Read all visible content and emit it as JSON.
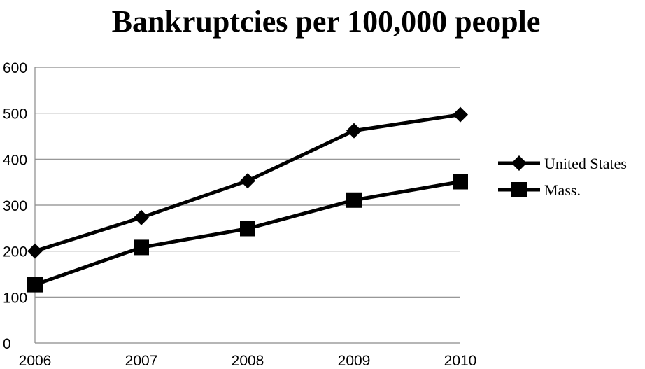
{
  "chart_data": {
    "type": "line",
    "title": "Bankruptcies per 100,000 people",
    "xlabel": "",
    "ylabel": "",
    "categories": [
      "2006",
      "2007",
      "2008",
      "2009",
      "2010"
    ],
    "ylim": [
      0,
      600
    ],
    "yticks": [
      0,
      100,
      200,
      300,
      400,
      500,
      600
    ],
    "grid": "horizontal",
    "legend_position": "right",
    "series": [
      {
        "name": "United States",
        "marker": "diamond",
        "color": "#000000",
        "values": [
          200,
          273,
          353,
          462,
          497
        ]
      },
      {
        "name": "Mass.",
        "marker": "square",
        "color": "#000000",
        "values": [
          127,
          208,
          249,
          311,
          351
        ]
      }
    ]
  }
}
